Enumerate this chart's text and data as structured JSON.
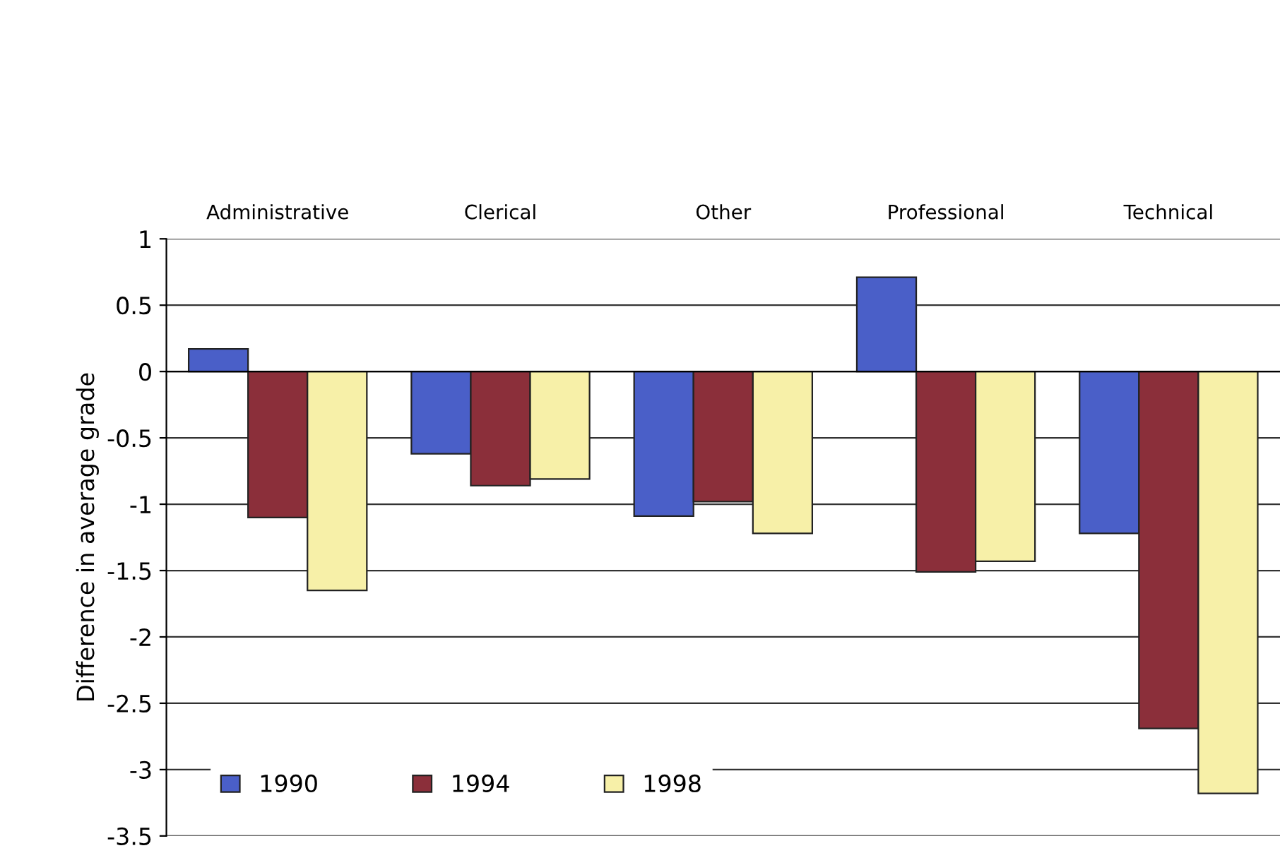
{
  "chart_data": {
    "type": "bar",
    "ylabel": "Difference in average grade",
    "categories": [
      "Administrative",
      "Clerical",
      "Other",
      "Professional",
      "Technical"
    ],
    "series": [
      {
        "name": "1990",
        "color": "#4a5fc8",
        "values": [
          0.17,
          -0.62,
          -1.09,
          0.71,
          -1.22
        ]
      },
      {
        "name": "1994",
        "color": "#8b2f3a",
        "values": [
          -1.1,
          -0.86,
          -0.98,
          -1.51,
          -2.69
        ]
      },
      {
        "name": "1998",
        "color": "#f7f0a8",
        "values": [
          -1.65,
          -0.81,
          -1.22,
          -1.43,
          -3.18
        ]
      }
    ],
    "ylim": [
      -3.5,
      1
    ],
    "yticks": [
      1,
      0.5,
      0,
      -0.5,
      -1,
      -1.5,
      -2,
      -2.5,
      -3,
      -3.5
    ],
    "grid": "y",
    "legend": "bottom left"
  }
}
